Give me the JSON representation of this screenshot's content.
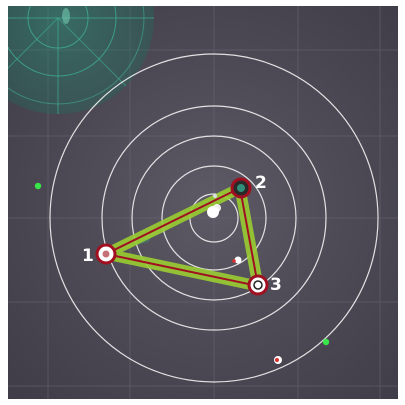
{
  "game": {
    "nodes": [
      {
        "label": "1"
      },
      {
        "label": "2"
      },
      {
        "label": "3"
      }
    ]
  },
  "colors": {
    "background": "#4e4b56",
    "ring": "#f2f2f2",
    "grid": "#6a6774",
    "radar": "#2f8f78",
    "edge_glow": "#9acd32",
    "edge_line": "#a01020",
    "node_ring": "#a01020",
    "node_fill": "#ffffff",
    "orb_green": "#39e64a",
    "dot_red": "#d93030"
  },
  "icons": {
    "radar": "radar-sweep-icon",
    "center": "center-core-icon"
  }
}
